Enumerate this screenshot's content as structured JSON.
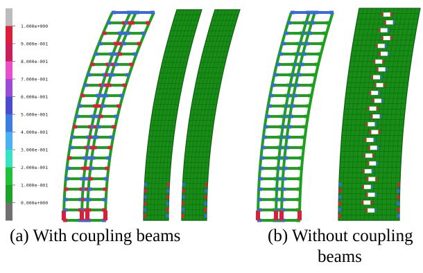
{
  "legend": {
    "ticks": [
      "1.000e+000",
      "9.000e-001",
      "8.000e-001",
      "7.000e-001",
      "6.000e-001",
      "5.000e-001",
      "4.000e-001",
      "3.000e-001",
      "2.000e-001",
      "1.000e-001",
      "0.000e+000"
    ],
    "colors": [
      "#bcbcbc",
      "#d8203a",
      "#c81e5a",
      "#e84fc8",
      "#9a4cd6",
      "#4a4ccc",
      "#3d7de0",
      "#49b2f0",
      "#38e3c3",
      "#21c039",
      "#1aa22a",
      "#707070"
    ]
  },
  "captions": {
    "a": "(a) With coupling beams",
    "b_line1": "(b) Without coupling",
    "b_line2": "beams"
  },
  "colors": {
    "frame_green": "#1f9f1f",
    "beam_blue": "#3a6ad6",
    "beam_red": "#d8203a",
    "wall_green": "#178c17",
    "mesh_dark": "#0c5f0c",
    "crack_white": "#ffffff"
  },
  "models": {
    "frame_floors": 20,
    "wall_floors": 20
  }
}
